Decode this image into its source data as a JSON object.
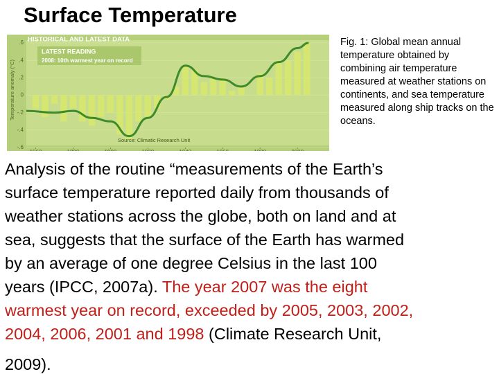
{
  "title": "Surface Temperature",
  "chart_data": {
    "type": "bar-line",
    "title": "HISTORICAL AND LATEST DATA",
    "annotations": [
      "LATEST READING",
      "2008: 10th warmest year on record"
    ],
    "source": "Source: Climatic Research Unit",
    "y_label": "Temperature anomaly (°C)",
    "xlim": [
      1855,
      2017
    ],
    "xticks": [
      1860,
      1880,
      1900,
      1920,
      1940,
      1960,
      1980,
      2000
    ],
    "ylim": [
      -0.6,
      0.6
    ],
    "yticks": [
      {
        "value": 0.6,
        "label": ".6"
      },
      {
        "value": 0.4,
        "label": ".4"
      },
      {
        "value": 0.2,
        "label": ".2"
      },
      0,
      {
        "value": -0.2,
        "label": "-.2"
      },
      {
        "value": -0.4,
        "label": "-.4"
      },
      {
        "value": -0.6,
        "label": "-.6"
      }
    ],
    "bars": {
      "color": "#d8e86a",
      "x": [
        1860,
        1865,
        1870,
        1875,
        1880,
        1885,
        1890,
        1895,
        1900,
        1905,
        1910,
        1915,
        1920,
        1925,
        1930,
        1935,
        1940,
        1945,
        1950,
        1955,
        1960,
        1965,
        1970,
        1975,
        1980,
        1985,
        1990,
        1995,
        2000,
        2005
      ],
      "values": [
        -0.15,
        -0.25,
        -0.1,
        -0.3,
        -0.15,
        -0.3,
        -0.35,
        -0.25,
        -0.2,
        -0.45,
        -0.5,
        -0.3,
        -0.25,
        -0.15,
        -0.05,
        0.1,
        0.35,
        0.3,
        0.15,
        0.2,
        0.2,
        0.05,
        0.1,
        0.0,
        0.25,
        0.2,
        0.4,
        0.4,
        0.5,
        0.6
      ]
    },
    "line": {
      "color": "#3f8a2a",
      "x": [
        1855,
        1870,
        1880,
        1890,
        1900,
        1910,
        1920,
        1930,
        1940,
        1950,
        1960,
        1970,
        1980,
        1990,
        2000,
        2006
      ],
      "values": [
        -0.18,
        -0.2,
        -0.18,
        -0.26,
        -0.3,
        -0.47,
        -0.26,
        -0.02,
        0.34,
        0.22,
        0.18,
        0.1,
        0.22,
        0.38,
        0.54,
        0.6
      ]
    }
  },
  "caption": "Fig. 1: Global mean annual temperature obtained by combining air temperature measured at weather stations on continents, and sea temperature measured along ship tracks on the oceans.",
  "paragraph": {
    "lines": [
      [
        {
          "text": "Analysis of the routine “measurements of the Earth’s",
          "color": "#000000"
        }
      ],
      [
        {
          "text": "surface temperature reported daily from thousands of",
          "color": "#000000"
        }
      ],
      [
        {
          "text": "weather stations across the globe, both on land and at",
          "color": "#000000"
        }
      ],
      [
        {
          "text": "sea, suggests that the surface of the Earth has warmed",
          "color": "#000000"
        }
      ],
      [
        {
          "text": "by an average of one degree Celsius in the last 100",
          "color": "#000000"
        }
      ],
      [
        {
          "text": "years (IPCC, 2007a). ",
          "color": "#000000"
        },
        {
          "text": "The year 2007 was the eight",
          "color": "#c0201a"
        }
      ],
      [
        {
          "text": "warmest year on record, exceeded by 2005, 2003, 2002,",
          "color": "#c0201a"
        }
      ],
      [
        {
          "text": "2004, 2006, 2001 and 1998",
          "color": "#c0201a"
        },
        {
          "text": " (Climate Research Unit,",
          "color": "#000000"
        }
      ],
      [
        {
          "text": "2009).",
          "color": "#000000"
        }
      ]
    ]
  }
}
